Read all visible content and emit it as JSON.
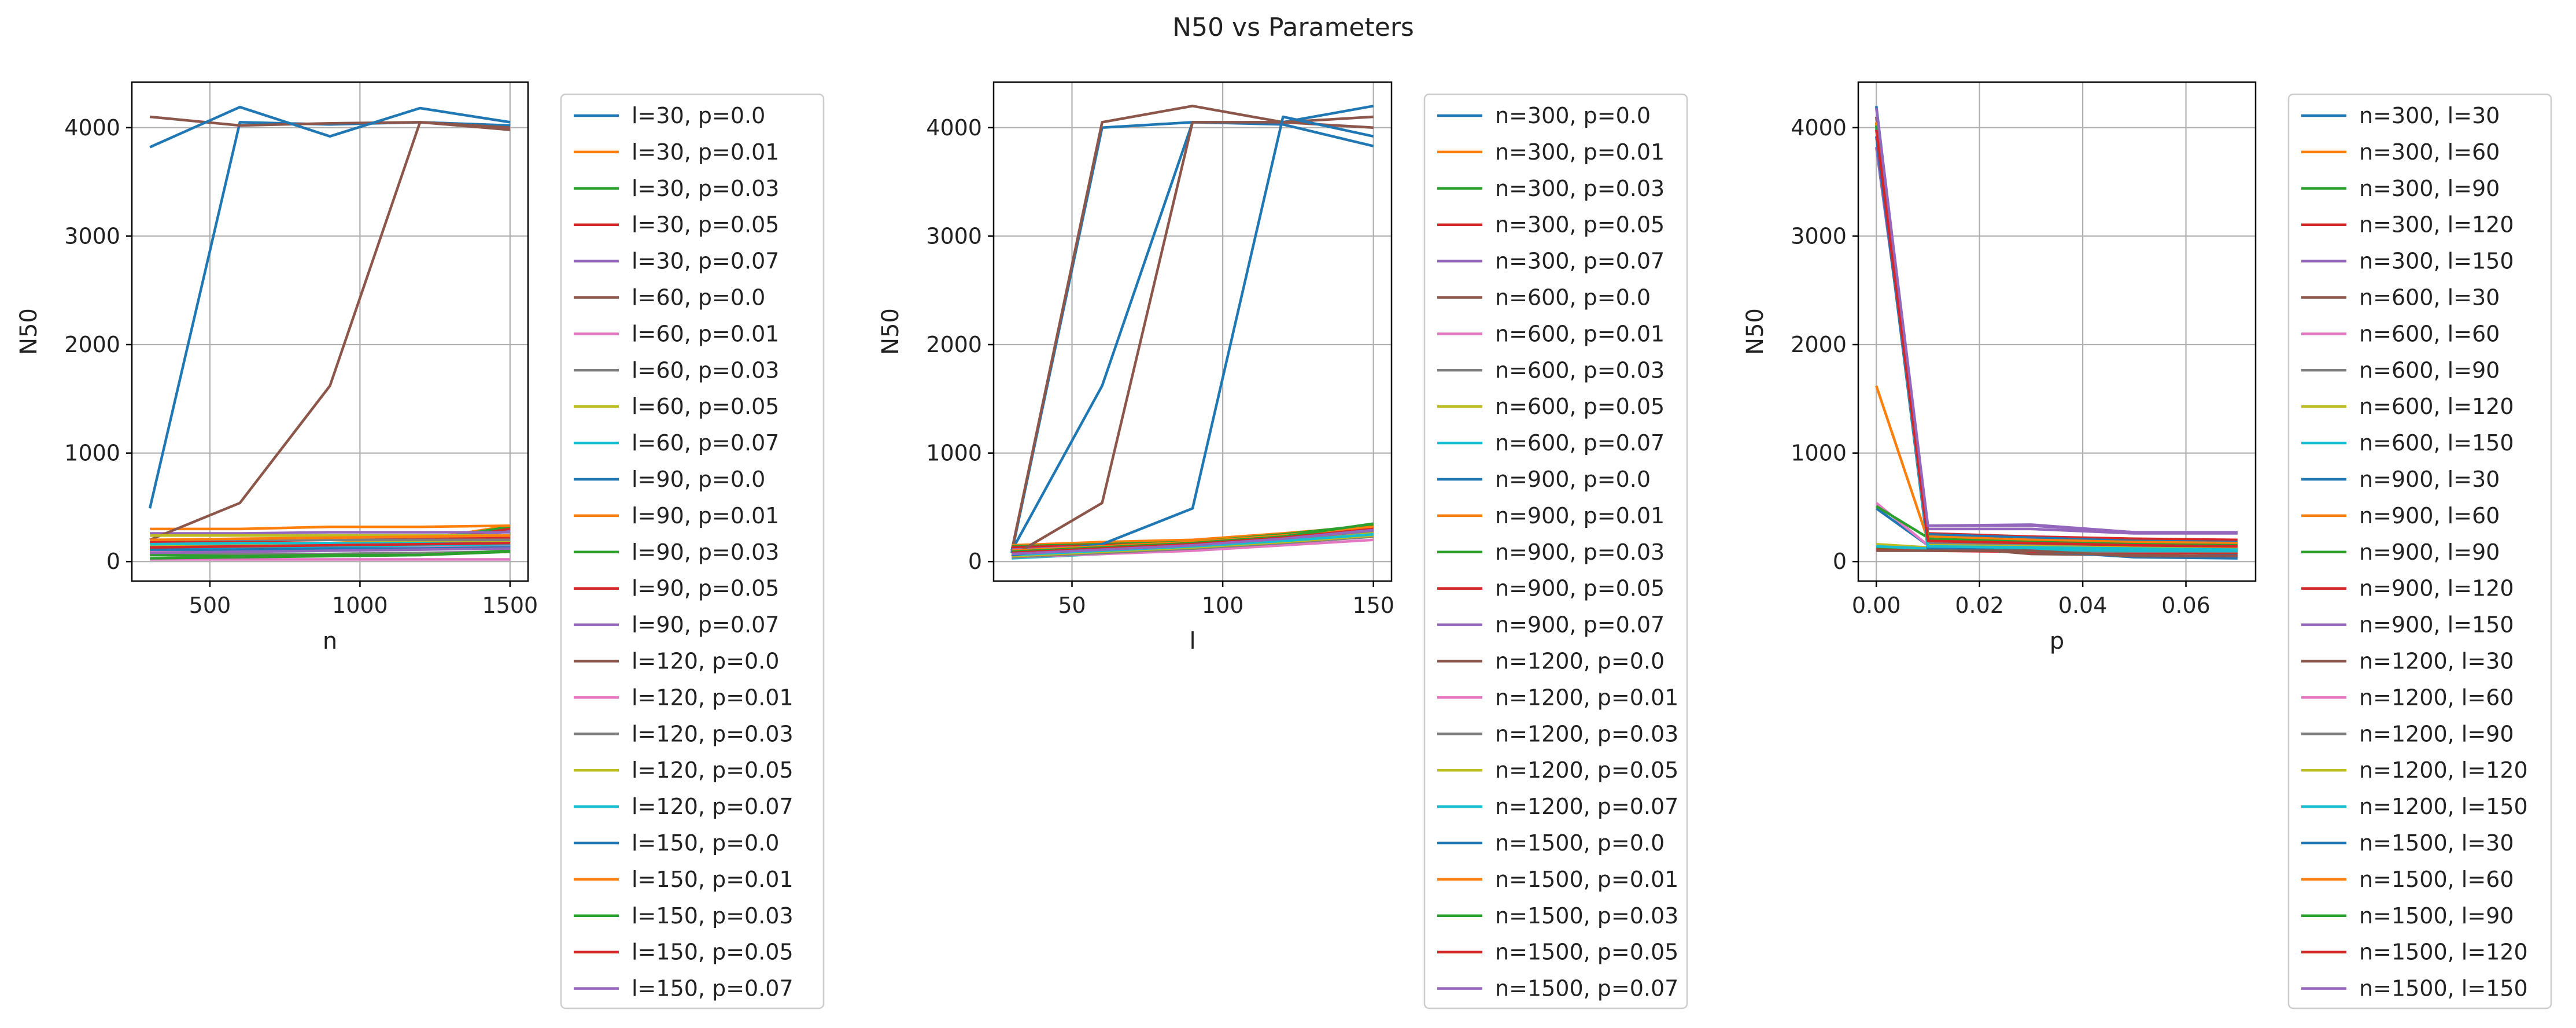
{
  "figure": {
    "title": "N50 vs Parameters"
  },
  "colors": [
    "#1f77b4",
    "#ff7f0e",
    "#2ca02c",
    "#d62728",
    "#9467bd",
    "#8c564b",
    "#e377c2",
    "#7f7f7f",
    "#bcbd22",
    "#17becf"
  ],
  "chart_data": [
    {
      "type": "line",
      "xlabel": "n",
      "ylabel": "N50",
      "xlim": [
        240,
        1560
      ],
      "ylim": [
        -180,
        4420
      ],
      "xticks": [
        500,
        1000,
        1500
      ],
      "yticks": [
        0,
        1000,
        2000,
        3000,
        4000
      ],
      "grid": true,
      "legend": "outside right",
      "x": [
        300,
        600,
        900,
        1200,
        1500
      ],
      "series": [
        {
          "name": "l=30, p=0.0",
          "values": [
            490,
            4050,
            4030,
            4050,
            4020
          ]
        },
        {
          "name": "l=30, p=0.01",
          "values": [
            140,
            150,
            170,
            200,
            330
          ]
        },
        {
          "name": "l=30, p=0.03",
          "values": [
            110,
            130,
            150,
            190,
            320
          ]
        },
        {
          "name": "l=30, p=0.05",
          "values": [
            90,
            110,
            130,
            170,
            300
          ]
        },
        {
          "name": "l=30, p=0.07",
          "values": [
            70,
            90,
            110,
            150,
            280
          ]
        },
        {
          "name": "l=60, p=0.0",
          "values": [
            4100,
            4020,
            4040,
            4050,
            3980
          ]
        },
        {
          "name": "l=60, p=0.01",
          "values": [
            100,
            120,
            130,
            140,
            150
          ]
        },
        {
          "name": "l=60, p=0.03",
          "values": [
            60,
            70,
            70,
            80,
            90
          ]
        },
        {
          "name": "l=60, p=0.05",
          "values": [
            150,
            160,
            170,
            180,
            190
          ]
        },
        {
          "name": "l=60, p=0.07",
          "values": [
            120,
            130,
            140,
            150,
            160
          ]
        },
        {
          "name": "l=90, p=0.0",
          "values": [
            3820,
            4190,
            3920,
            4180,
            4050
          ]
        },
        {
          "name": "l=90, p=0.01",
          "values": [
            300,
            300,
            320,
            320,
            330
          ]
        },
        {
          "name": "l=90, p=0.03",
          "values": [
            60,
            50,
            60,
            60,
            90
          ]
        },
        {
          "name": "l=90, p=0.05",
          "values": [
            180,
            190,
            200,
            210,
            220
          ]
        },
        {
          "name": "l=90, p=0.07",
          "values": [
            260,
            260,
            270,
            270,
            270
          ]
        },
        {
          "name": "l=120, p=0.0",
          "values": [
            200,
            540,
            1620,
            4050,
            4000
          ]
        },
        {
          "name": "l=120, p=0.01",
          "values": [
            20,
            20,
            20,
            20,
            20
          ]
        },
        {
          "name": "l=120, p=0.03",
          "values": [
            200,
            200,
            200,
            200,
            200
          ]
        },
        {
          "name": "l=120, p=0.05",
          "values": [
            240,
            240,
            240,
            240,
            240
          ]
        },
        {
          "name": "l=120, p=0.07",
          "values": [
            160,
            170,
            170,
            170,
            170
          ]
        },
        {
          "name": "l=150, p=0.0",
          "values": [
            110,
            110,
            120,
            120,
            130
          ]
        },
        {
          "name": "l=150, p=0.01",
          "values": [
            200,
            210,
            220,
            230,
            240
          ]
        },
        {
          "name": "l=150, p=0.03",
          "values": [
            30,
            40,
            50,
            60,
            100
          ]
        },
        {
          "name": "l=150, p=0.05",
          "values": [
            130,
            140,
            150,
            160,
            170
          ]
        },
        {
          "name": "l=150, p=0.07",
          "values": [
            80,
            90,
            100,
            110,
            120
          ]
        }
      ]
    },
    {
      "type": "line",
      "xlabel": "l",
      "ylabel": "N50",
      "xlim": [
        24,
        156
      ],
      "ylim": [
        -180,
        4420
      ],
      "xticks": [
        50,
        100,
        150
      ],
      "yticks": [
        0,
        1000,
        2000,
        3000,
        4000
      ],
      "grid": true,
      "legend": "outside right",
      "x": [
        30,
        60,
        90,
        120,
        150
      ],
      "series": [
        {
          "name": "n=300, p=0.0",
          "values": [
            80,
            4000,
            4050,
            4050,
            4200
          ]
        },
        {
          "name": "n=300, p=0.01",
          "values": [
            80,
            120,
            160,
            220,
            300
          ]
        },
        {
          "name": "n=300, p=0.03",
          "values": [
            70,
            110,
            150,
            210,
            290
          ]
        },
        {
          "name": "n=300, p=0.05",
          "values": [
            60,
            100,
            140,
            200,
            280
          ]
        },
        {
          "name": "n=300, p=0.07",
          "values": [
            50,
            90,
            130,
            190,
            270
          ]
        },
        {
          "name": "n=600, p=0.0",
          "values": [
            100,
            4050,
            4200,
            4050,
            4100
          ]
        },
        {
          "name": "n=600, p=0.01",
          "values": [
            60,
            100,
            140,
            200,
            280
          ]
        },
        {
          "name": "n=600, p=0.03",
          "values": [
            50,
            90,
            130,
            190,
            270
          ]
        },
        {
          "name": "n=600, p=0.05",
          "values": [
            40,
            80,
            120,
            180,
            260
          ]
        },
        {
          "name": "n=600, p=0.07",
          "values": [
            30,
            70,
            110,
            170,
            250
          ]
        },
        {
          "name": "n=900, p=0.0",
          "values": [
            100,
            1620,
            4050,
            4030,
            3830
          ]
        },
        {
          "name": "n=900, p=0.01",
          "values": [
            150,
            180,
            200,
            260,
            330
          ]
        },
        {
          "name": "n=900, p=0.03",
          "values": [
            140,
            160,
            180,
            250,
            340
          ]
        },
        {
          "name": "n=900, p=0.05",
          "values": [
            130,
            150,
            170,
            240,
            320
          ]
        },
        {
          "name": "n=900, p=0.07",
          "values": [
            110,
            140,
            160,
            230,
            310
          ]
        },
        {
          "name": "n=1200, p=0.0",
          "values": [
            50,
            540,
            4050,
            4050,
            4000
          ]
        },
        {
          "name": "n=1200, p=0.01",
          "values": [
            40,
            70,
            100,
            150,
            200
          ]
        },
        {
          "name": "n=1200, p=0.03",
          "values": [
            40,
            80,
            120,
            170,
            230
          ]
        },
        {
          "name": "n=1200, p=0.05",
          "values": [
            50,
            90,
            130,
            180,
            240
          ]
        },
        {
          "name": "n=1200, p=0.07",
          "values": [
            60,
            100,
            140,
            190,
            250
          ]
        },
        {
          "name": "n=1500, p=0.0",
          "values": [
            60,
            160,
            490,
            4100,
            3920
          ]
        },
        {
          "name": "n=1500, p=0.01",
          "values": [
            100,
            140,
            180,
            240,
            320
          ]
        },
        {
          "name": "n=1500, p=0.03",
          "values": [
            90,
            130,
            170,
            230,
            350
          ]
        },
        {
          "name": "n=1500, p=0.05",
          "values": [
            80,
            120,
            160,
            220,
            300
          ]
        },
        {
          "name": "n=1500, p=0.07",
          "values": [
            70,
            110,
            150,
            210,
            290
          ]
        }
      ]
    },
    {
      "type": "line",
      "xlabel": "p",
      "ylabel": "N50",
      "xlim": [
        -0.0035,
        0.0735
      ],
      "ylim": [
        -180,
        4420
      ],
      "xticks": [
        0.0,
        0.02,
        0.04,
        0.06
      ],
      "xticklabels": [
        "0.00",
        "0.02",
        "0.04",
        "0.06"
      ],
      "yticks": [
        0,
        1000,
        2000,
        3000,
        4000
      ],
      "grid": true,
      "legend": "outside right",
      "x": [
        0.0,
        0.01,
        0.03,
        0.05,
        0.07
      ],
      "series": [
        {
          "name": "n=300, l=30",
          "values": [
            490,
            150,
            110,
            90,
            70
          ]
        },
        {
          "name": "n=300, l=60",
          "values": [
            150,
            120,
            110,
            100,
            100
          ]
        },
        {
          "name": "n=300, l=90",
          "values": [
            130,
            110,
            100,
            90,
            90
          ]
        },
        {
          "name": "n=300, l=120",
          "values": [
            110,
            100,
            90,
            80,
            80
          ]
        },
        {
          "name": "n=300, l=150",
          "values": [
            3820,
            300,
            300,
            260,
            260
          ]
        },
        {
          "name": "n=600, l=30",
          "values": [
            4100,
            150,
            70,
            60,
            50
          ]
        },
        {
          "name": "n=600, l=60",
          "values": [
            540,
            150,
            130,
            120,
            120
          ]
        },
        {
          "name": "n=600, l=90",
          "values": [
            150,
            110,
            100,
            90,
            90
          ]
        },
        {
          "name": "n=600, l=120",
          "values": [
            160,
            130,
            120,
            110,
            110
          ]
        },
        {
          "name": "n=600, l=150",
          "values": [
            140,
            120,
            110,
            100,
            100
          ]
        },
        {
          "name": "n=900, l=30",
          "values": [
            3920,
            120,
            100,
            40,
            30
          ]
        },
        {
          "name": "n=900, l=60",
          "values": [
            1620,
            200,
            180,
            170,
            160
          ]
        },
        {
          "name": "n=900, l=90",
          "values": [
            510,
            220,
            200,
            180,
            170
          ]
        },
        {
          "name": "n=900, l=120",
          "values": [
            4020,
            260,
            230,
            210,
            200
          ]
        },
        {
          "name": "n=900, l=150",
          "values": [
            4050,
            330,
            330,
            270,
            270
          ]
        },
        {
          "name": "n=1200, l=30",
          "values": [
            100,
            100,
            100,
            50,
            50
          ]
        },
        {
          "name": "n=1200, l=60",
          "values": [
            4050,
            190,
            180,
            160,
            150
          ]
        },
        {
          "name": "n=1200, l=90",
          "values": [
            4050,
            170,
            160,
            150,
            140
          ]
        },
        {
          "name": "n=1200, l=120",
          "values": [
            4040,
            150,
            140,
            130,
            120
          ]
        },
        {
          "name": "n=1200, l=150",
          "values": [
            4000,
            140,
            130,
            120,
            110
          ]
        },
        {
          "name": "n=1500, l=30",
          "values": [
            4200,
            250,
            220,
            190,
            180
          ]
        },
        {
          "name": "n=1500, l=60",
          "values": [
            4050,
            230,
            200,
            180,
            170
          ]
        },
        {
          "name": "n=1500, l=90",
          "values": [
            4020,
            210,
            180,
            160,
            150
          ]
        },
        {
          "name": "n=1500, l=120",
          "values": [
            3980,
            190,
            170,
            150,
            140
          ]
        },
        {
          "name": "n=1500, l=150",
          "values": [
            4180,
            330,
            340,
            270,
            270
          ]
        }
      ]
    }
  ]
}
